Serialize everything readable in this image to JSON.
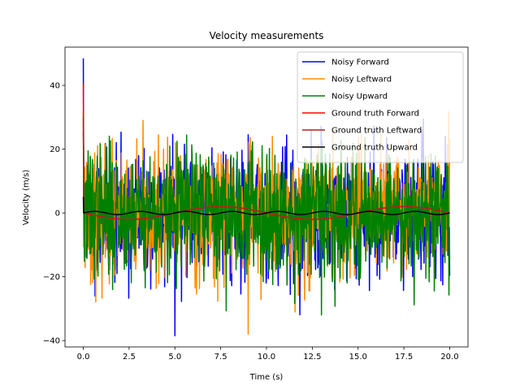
{
  "chart_data": {
    "type": "line",
    "title": "Velocity measurements",
    "xlabel": "Time (s)",
    "ylabel": "Velocity (m/s)",
    "xlim": [
      -1.0,
      21.0
    ],
    "ylim": [
      -42.0,
      52.0
    ],
    "xticks": [
      0.0,
      2.5,
      5.0,
      7.5,
      10.0,
      12.5,
      15.0,
      17.5,
      20.0
    ],
    "xtick_labels": [
      "0.0",
      "2.5",
      "5.0",
      "7.5",
      "10.0",
      "12.5",
      "15.0",
      "17.5",
      "20.0"
    ],
    "yticks": [
      -40,
      -20,
      0,
      20,
      40
    ],
    "ytick_labels": [
      "−40",
      "−20",
      "0",
      "20",
      "40"
    ],
    "legend_position": "top-right",
    "time": {
      "start": 0.0,
      "end": 20.0,
      "step": 0.02
    },
    "series": [
      {
        "name": "Noisy Forward",
        "kind": "noisy",
        "color": "#0000ff",
        "noise_std": 10.0,
        "seed": 11,
        "truth": "forward",
        "initial_peak": 48.5,
        "min_reached": -38.5
      },
      {
        "name": "Noisy Leftward",
        "kind": "noisy",
        "color": "#ff8c00",
        "noise_std": 10.0,
        "seed": 23,
        "truth": "leftward",
        "initial_peak": 32.0,
        "min_reached": -38.0
      },
      {
        "name": "Noisy Upward",
        "kind": "noisy",
        "color": "#008000",
        "noise_std": 10.0,
        "seed": 37,
        "truth": "upward",
        "initial_peak": 25.0,
        "min_reached": -32.0
      },
      {
        "name": "Ground truth Forward",
        "kind": "truth",
        "color": "#ff0000",
        "initial_peak": 40.5,
        "amplitude": 2.0,
        "period": 10.0
      },
      {
        "name": "Ground truth Leftward",
        "kind": "truth",
        "color": "#b22222",
        "initial_peak": 30.0,
        "amplitude": 2.0,
        "period": 10.0
      },
      {
        "name": "Ground truth Upward",
        "kind": "truth",
        "color": "#000000",
        "initial_peak": 5.0,
        "amplitude": 0.5,
        "period": 2.5
      }
    ]
  }
}
